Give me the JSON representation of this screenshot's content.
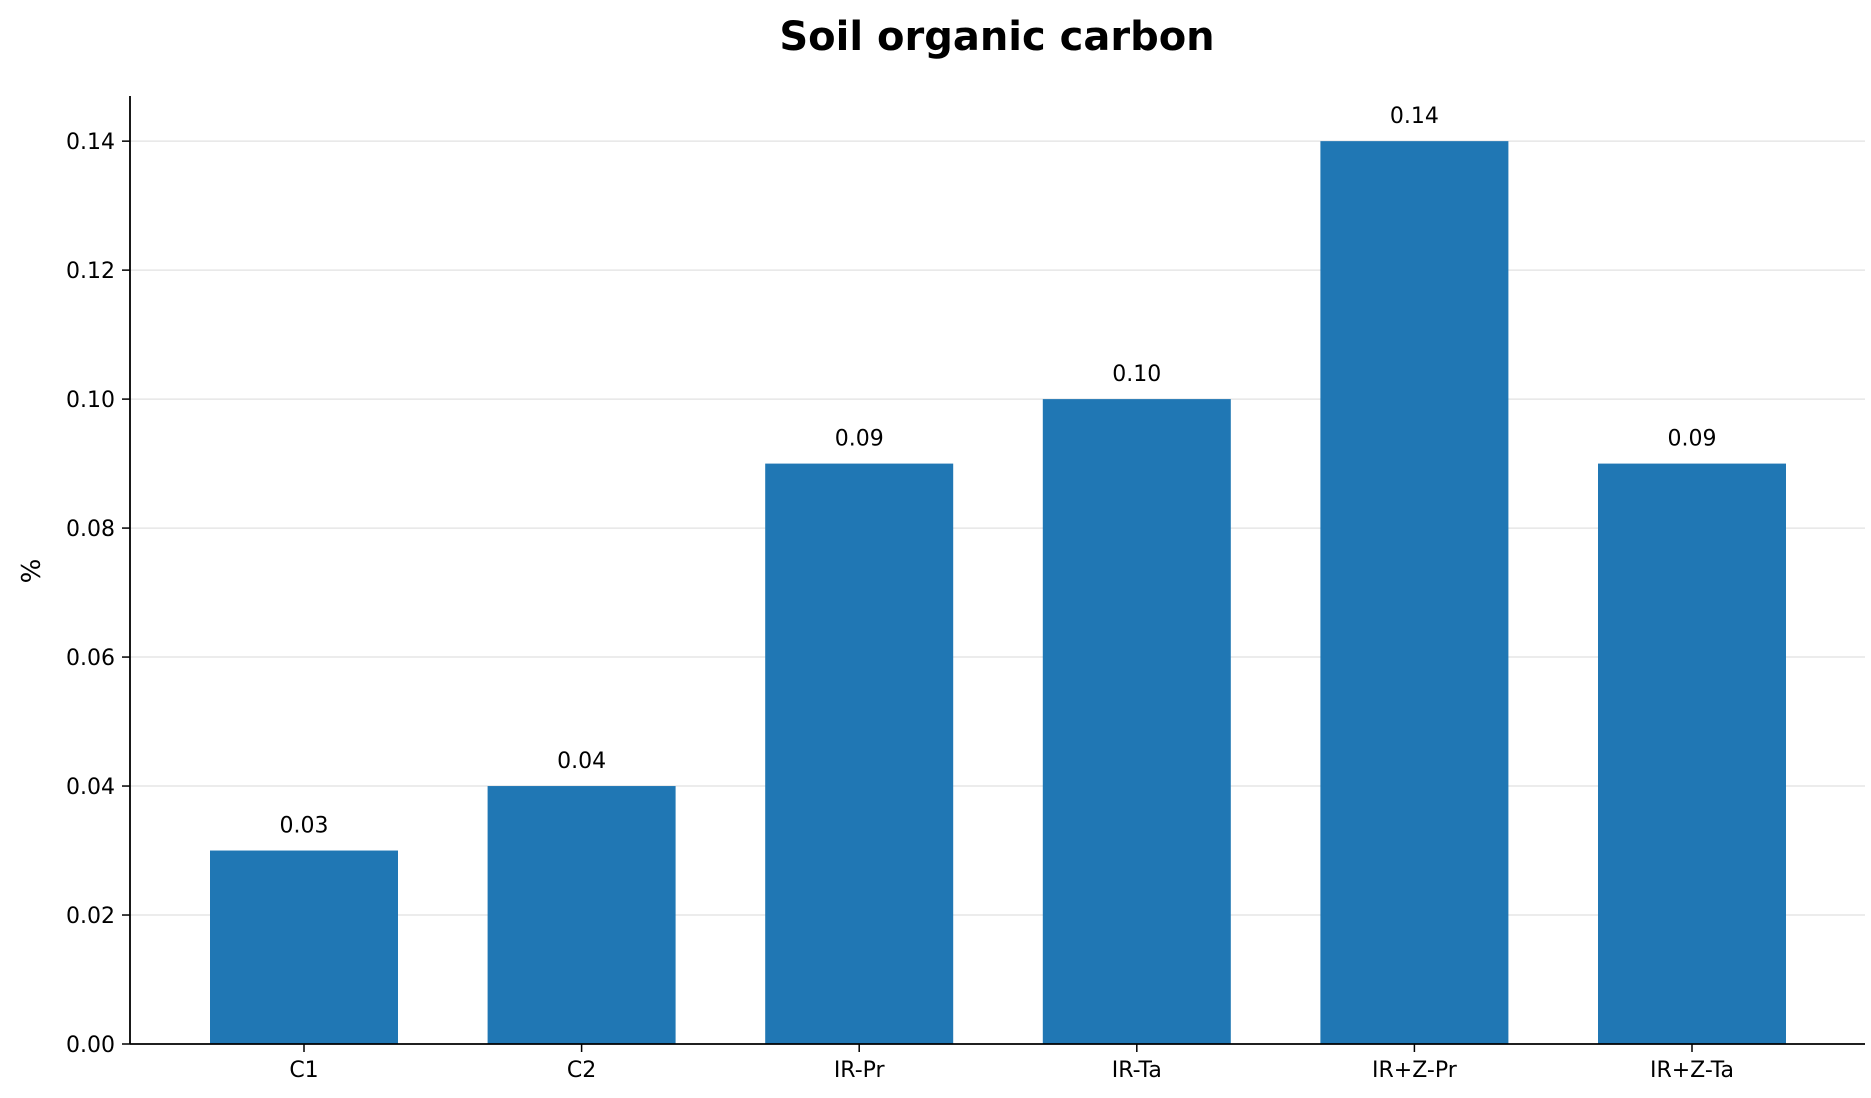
{
  "chart_data": {
    "type": "bar",
    "title": "Soil organic carbon",
    "xlabel": "",
    "ylabel": "%",
    "categories": [
      "C1",
      "C2",
      "IR-Pr",
      "IR-Ta",
      "IR+Z-Pr",
      "IR+Z-Ta"
    ],
    "values": [
      0.03,
      0.04,
      0.09,
      0.1,
      0.14,
      0.09
    ],
    "value_labels": [
      "0.03",
      "0.04",
      "0.09",
      "0.10",
      "0.14",
      "0.09"
    ],
    "ylim": [
      0,
      0.147
    ],
    "yticks": [
      0.0,
      0.02,
      0.04,
      0.06,
      0.08,
      0.1,
      0.12,
      0.14
    ],
    "ytick_labels": [
      "0.00",
      "0.02",
      "0.04",
      "0.06",
      "0.08",
      "0.10",
      "0.12",
      "0.14"
    ],
    "grid": "horizontal",
    "bar_color": "#2077b4",
    "grid_color": "#e6e6e6"
  }
}
